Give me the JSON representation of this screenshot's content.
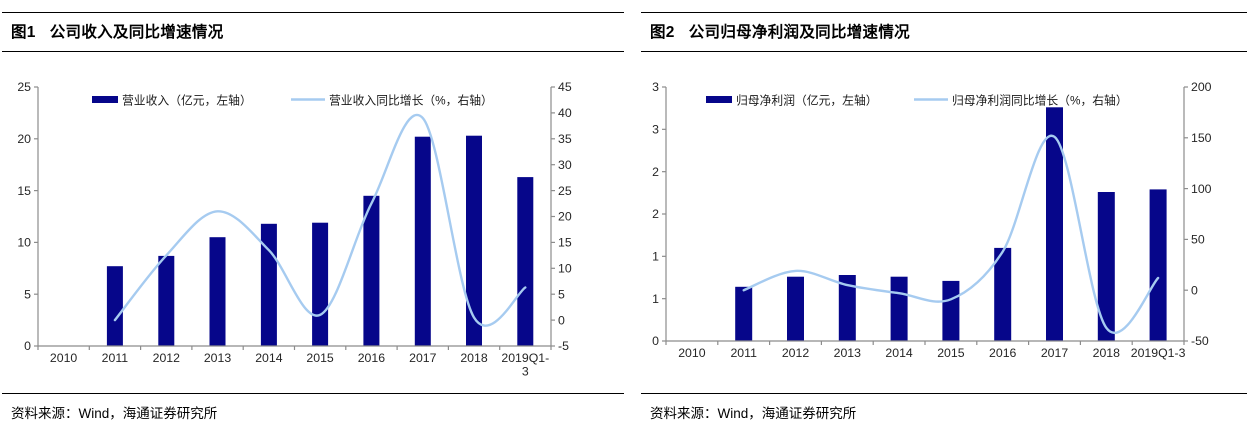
{
  "colors": {
    "bar": "#06068A",
    "line": "#A6CBF0",
    "axis": "#8C8C8C",
    "tick_label": "#262626",
    "legend_text": "#1A1A1A",
    "rule": "#000000"
  },
  "chart_data": [
    {
      "type": "bar+line",
      "fig_label": "图1",
      "title": "公司收入及同比增速情况",
      "source": "资料来源：Wind，海通证券研究所",
      "categories": [
        "2010",
        "2011",
        "2012",
        "2013",
        "2014",
        "2015",
        "2016",
        "2017",
        "2018",
        "2019Q1-3"
      ],
      "x_display_labels": [
        "2010",
        "2011",
        "2012",
        "2013",
        "2014",
        "2015",
        "2016",
        "2017",
        "2018",
        "2019Q1-\n3"
      ],
      "series": [
        {
          "name": "营业收入（亿元，左轴）",
          "type": "bar",
          "axis": "left",
          "values": [
            null,
            7.7,
            8.7,
            10.5,
            11.8,
            11.9,
            14.5,
            20.2,
            20.3,
            16.3
          ]
        },
        {
          "name": "营业收入同比增长（%，右轴）",
          "type": "line",
          "axis": "right",
          "values": [
            null,
            0,
            12.5,
            21,
            13.5,
            1,
            22.5,
            39,
            0.5,
            6.3
          ]
        }
      ],
      "left_axis": {
        "min": 0,
        "max": 25,
        "step": 5,
        "labels_bottom_to_top": [
          "0",
          "5",
          "10",
          "15",
          "20",
          "25"
        ]
      },
      "right_axis": {
        "min": -5,
        "max": 45,
        "step": 5,
        "labels_bottom_to_top": [
          "-5",
          "0",
          "5",
          "10",
          "15",
          "20",
          "25",
          "30",
          "35",
          "40",
          "45"
        ]
      },
      "legend_position": "top-inside",
      "grid": "off"
    },
    {
      "type": "bar+line",
      "fig_label": "图2",
      "title": "公司归母净利润及同比增速情况",
      "source": "资料来源：Wind，海通证券研究所",
      "categories": [
        "2010",
        "2011",
        "2012",
        "2013",
        "2014",
        "2015",
        "2016",
        "2017",
        "2018",
        "2019Q1-3"
      ],
      "x_display_labels": [
        "2010",
        "2011",
        "2012",
        "2013",
        "2014",
        "2015",
        "2016",
        "2017",
        "2018",
        "2019Q1-3"
      ],
      "series": [
        {
          "name": "归母净利润（亿元，左轴）",
          "type": "bar",
          "axis": "left",
          "values": [
            null,
            0.64,
            0.76,
            0.78,
            0.76,
            0.71,
            1.1,
            2.76,
            1.76,
            1.79
          ]
        },
        {
          "name": "归母净利润同比增长（%，右轴）",
          "type": "line",
          "axis": "right",
          "values": [
            null,
            0,
            19,
            5,
            -3,
            -9,
            38,
            151,
            -37,
            12
          ]
        }
      ],
      "left_axis": {
        "min": 0,
        "max": 3,
        "step": 0.5,
        "labels_bottom_to_top": [
          "0",
          "1",
          "1",
          "2",
          "2",
          "3",
          "3"
        ]
      },
      "right_axis": {
        "min": -50,
        "max": 200,
        "step": 50,
        "labels_bottom_to_top": [
          "-50",
          "0",
          "50",
          "100",
          "150",
          "200"
        ]
      },
      "legend_position": "top-inside",
      "grid": "off"
    }
  ]
}
